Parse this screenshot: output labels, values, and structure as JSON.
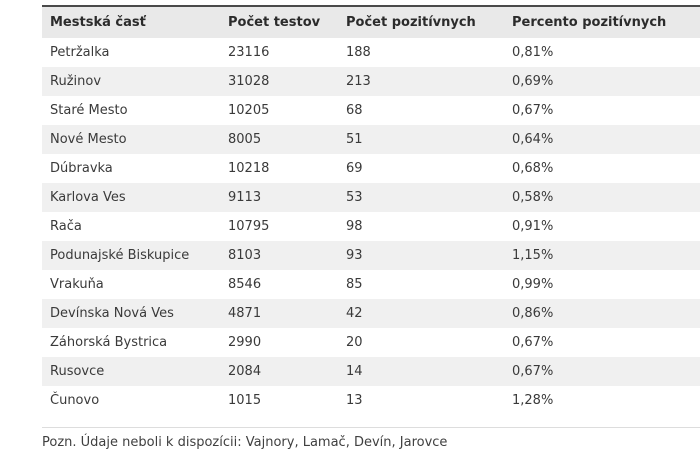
{
  "chart_data": {
    "type": "table",
    "columns": [
      "Mestská časť",
      "Počet testov",
      "Počet pozitívnych",
      "Percento pozitívnych"
    ],
    "rows": [
      [
        "Petržalka",
        "23116",
        "188",
        "0,81%"
      ],
      [
        "Ružinov",
        "31028",
        "213",
        "0,69%"
      ],
      [
        "Staré Mesto",
        "10205",
        "68",
        "0,67%"
      ],
      [
        "Nové Mesto",
        "8005",
        "51",
        "0,64%"
      ],
      [
        "Dúbravka",
        "10218",
        "69",
        "0,68%"
      ],
      [
        "Karlova Ves",
        "9113",
        "53",
        "0,58%"
      ],
      [
        "Rača",
        "10795",
        "98",
        "0,91%"
      ],
      [
        "Podunajské Biskupice",
        "8103",
        "93",
        "1,15%"
      ],
      [
        "Vrakuňa",
        "8546",
        "85",
        "0,99%"
      ],
      [
        "Devínska Nová Ves",
        "4871",
        "42",
        "0,86%"
      ],
      [
        "Záhorská Bystrica",
        "2990",
        "20",
        "0,67%"
      ],
      [
        "Rusovce",
        "2084",
        "14",
        "0,67%"
      ],
      [
        "Čunovo",
        "1015",
        "13",
        "1,28%"
      ]
    ],
    "layout": {
      "striped_rows": true,
      "stripe_starts_at_row": 2,
      "legend": "none",
      "grid": "off"
    }
  },
  "footer": {
    "note": "Pozn. Údaje neboli k dispozícii: Vajnory, Lamač, Devín, Jarovce"
  },
  "colors": {
    "top_border": "#4a4a4a",
    "header_bg": "#e9e9e9",
    "row_stripe_bg": "#f0f0f0",
    "table_bottom_border": "#dddddd",
    "text": "#333333"
  }
}
